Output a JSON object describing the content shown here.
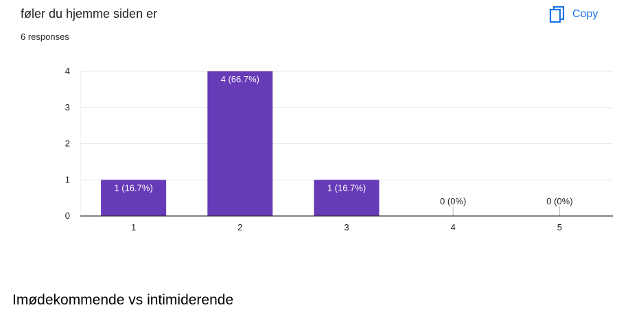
{
  "question": {
    "title": "føler du hjemme siden er",
    "responses": "6 responses"
  },
  "copy_button": {
    "label": "Copy",
    "icon": "copy-icon"
  },
  "colors": {
    "bar": "#673ab7",
    "accent": "#1a73e8",
    "grid": "#e8e8e8",
    "axis": "#333333",
    "text": "#202124"
  },
  "chart_data": {
    "type": "bar",
    "categories": [
      "1",
      "2",
      "3",
      "4",
      "5"
    ],
    "values": [
      1,
      4,
      1,
      0,
      0
    ],
    "data_labels": [
      "1 (16.7%)",
      "4 (66.7%)",
      "1 (16.7%)",
      "0 (0%)",
      "0 (0%)"
    ],
    "yticks": [
      "0",
      "1",
      "2",
      "3",
      "4"
    ],
    "ylim": [
      0,
      4
    ],
    "grid": true,
    "title": "",
    "xlabel": "",
    "ylabel": ""
  },
  "next_section": {
    "title": "Imødekommende vs intimiderende"
  }
}
